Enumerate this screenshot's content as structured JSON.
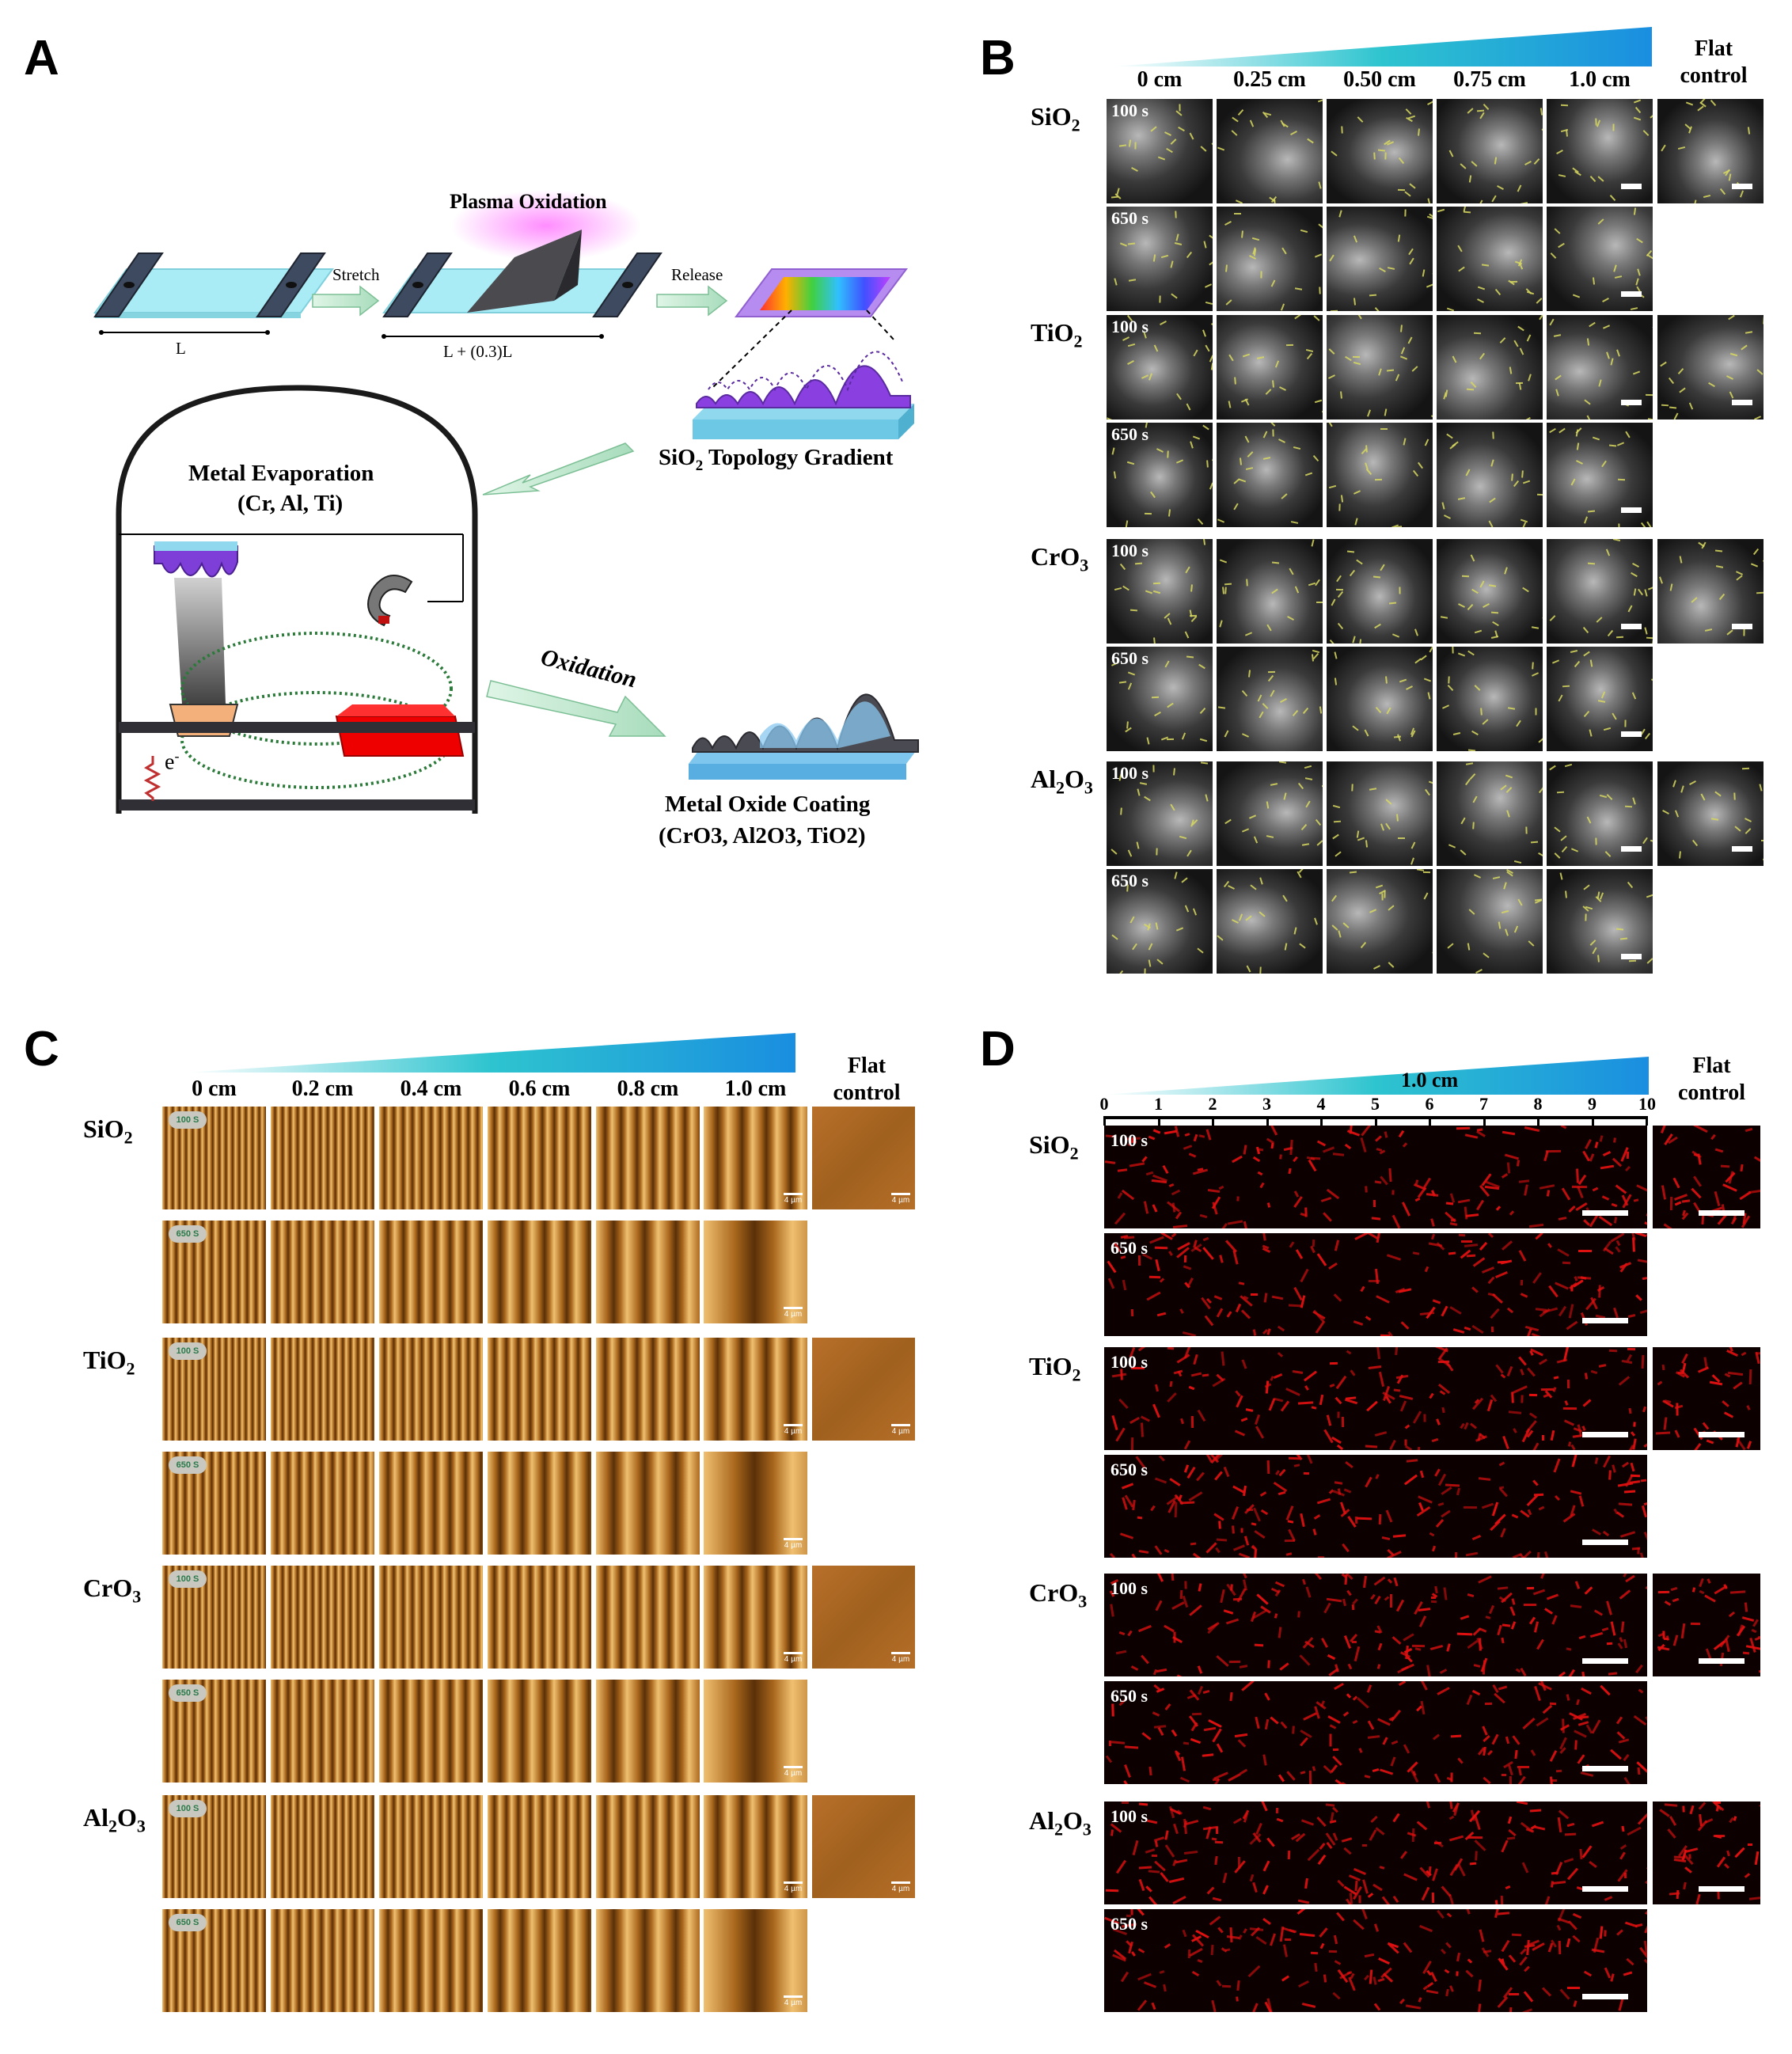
{
  "panels": {
    "a": "A",
    "b": "B",
    "c": "C",
    "d": "D"
  },
  "panel_a": {
    "plasma_oxidation": "Plasma Oxidation",
    "stretch": "Stretch",
    "release": "Release",
    "length_l": "L",
    "length_stretched": "L + (0.3)L",
    "topology_gradient_pre": "SiO",
    "topology_gradient_sub": "2",
    "topology_gradient_post": " Topology Gradient",
    "metal_evaporation": "Metal Evaporation",
    "metals": "(Cr, Al, Ti)",
    "electron": "e",
    "electron_sup": "-",
    "oxidation": "Oxidation",
    "coating_title": "Metal Oxide Coating",
    "coating_list": "(CrO3, Al2O3, TiO2)"
  },
  "panel_b": {
    "columns": [
      "0 cm",
      "0.25 cm",
      "0.50 cm",
      "0.75 cm",
      "1.0 cm"
    ],
    "flat_control_1": "Flat",
    "flat_control_2": "control",
    "materials": [
      "SiO2",
      "TiO2",
      "CrO3",
      "Al2O3"
    ],
    "times": [
      "100 s",
      "650 s"
    ]
  },
  "panel_c": {
    "columns": [
      "0 cm",
      "0.2 cm",
      "0.4 cm",
      "0.6 cm",
      "0.8 cm",
      "1.0 cm"
    ],
    "flat_control_1": "Flat",
    "flat_control_2": "control",
    "badges": [
      "100 S",
      "650 S"
    ],
    "scale": "4 µm"
  },
  "panel_d": {
    "axis_title": "1.0 cm",
    "ticks": [
      "0",
      "1",
      "2",
      "3",
      "4",
      "5",
      "6",
      "7",
      "8",
      "9",
      "10"
    ],
    "flat_control_1": "Flat",
    "flat_control_2": "control",
    "times": [
      "100 s",
      "650 s"
    ]
  },
  "colors": {
    "gradient_start": "#ffffff",
    "gradient_mid": "#2ec4cf",
    "gradient_end": "#1a8ee0",
    "cell_yellow": "#d8d860",
    "fluo_red": "#e01010",
    "afm_brown": "#a86a1e"
  }
}
